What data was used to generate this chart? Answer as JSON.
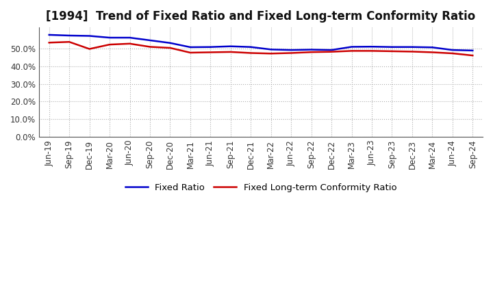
{
  "title": "[1994]  Trend of Fixed Ratio and Fixed Long-term Conformity Ratio",
  "ylim": [
    0.0,
    0.62
  ],
  "yticks": [
    0.0,
    0.1,
    0.2,
    0.3,
    0.4,
    0.5
  ],
  "x_labels": [
    "Jun-19",
    "Sep-19",
    "Dec-19",
    "Mar-20",
    "Jun-20",
    "Sep-20",
    "Dec-20",
    "Mar-21",
    "Jun-21",
    "Sep-21",
    "Dec-21",
    "Mar-22",
    "Jun-22",
    "Sep-22",
    "Dec-22",
    "Mar-23",
    "Jun-23",
    "Sep-23",
    "Dec-23",
    "Mar-24",
    "Jun-24",
    "Sep-24"
  ],
  "fixed_ratio": [
    0.578,
    0.574,
    0.572,
    0.562,
    0.562,
    0.547,
    0.532,
    0.508,
    0.509,
    0.513,
    0.509,
    0.495,
    0.492,
    0.494,
    0.492,
    0.51,
    0.511,
    0.509,
    0.509,
    0.507,
    0.492,
    0.489
  ],
  "fixed_lt_conformity": [
    0.534,
    0.538,
    0.498,
    0.523,
    0.528,
    0.51,
    0.504,
    0.477,
    0.479,
    0.481,
    0.475,
    0.472,
    0.475,
    0.48,
    0.482,
    0.487,
    0.487,
    0.485,
    0.483,
    0.479,
    0.473,
    0.461
  ],
  "line_color_fixed": "#0000CC",
  "line_color_lt": "#CC0000",
  "line_width": 1.8,
  "bg_color": "#FFFFFF",
  "grid_color": "#999999",
  "legend_fixed": "Fixed Ratio",
  "legend_lt": "Fixed Long-term Conformity Ratio",
  "title_fontsize": 12,
  "tick_fontsize": 8.5,
  "legend_fontsize": 9.5
}
